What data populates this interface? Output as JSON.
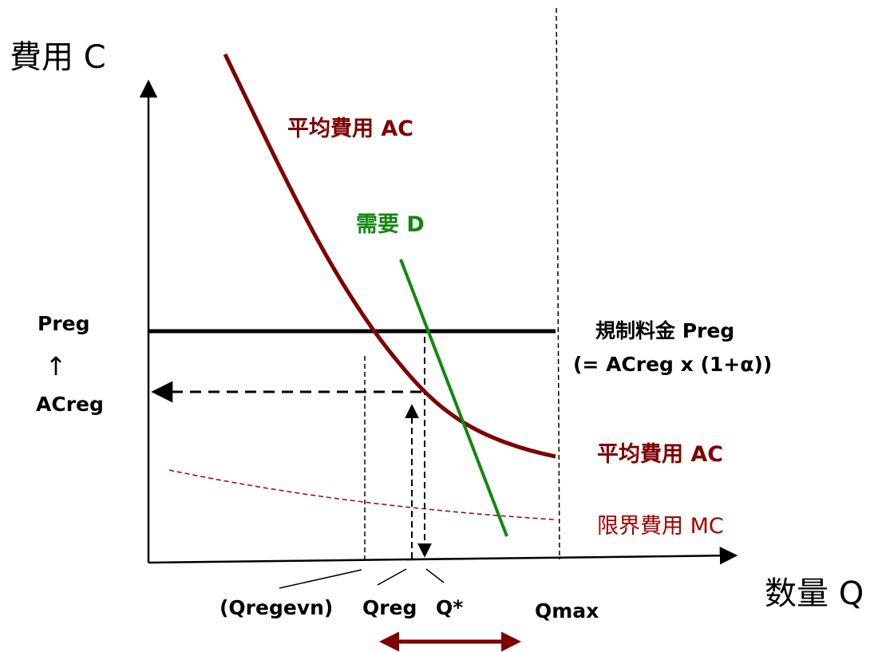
{
  "axes": {
    "y_label": "費用 C",
    "x_label": "数量 Q"
  },
  "curves": {
    "average_cost_top": "平均費用 AC",
    "average_cost_right": "平均費用 AC",
    "demand": "需要 D",
    "marginal_cost": "限界費用 MC"
  },
  "price": {
    "regulated_label": "規制料金 Preg",
    "regulated_formula": "(= ACreg x (1+α))"
  },
  "y_side": {
    "preg": "Preg",
    "arrow": "↑",
    "acreg": "ACreg"
  },
  "x_ticks": {
    "qregevn": "(Qregevn)",
    "qreg": "Qreg",
    "qstar": "Q*",
    "qmax": "Qmax"
  },
  "colors": {
    "average_cost": "#7f0000",
    "demand": "#118811",
    "marginal_cost": "#a00000",
    "axis": "#000000",
    "range_arrow": "#7f0000"
  }
}
